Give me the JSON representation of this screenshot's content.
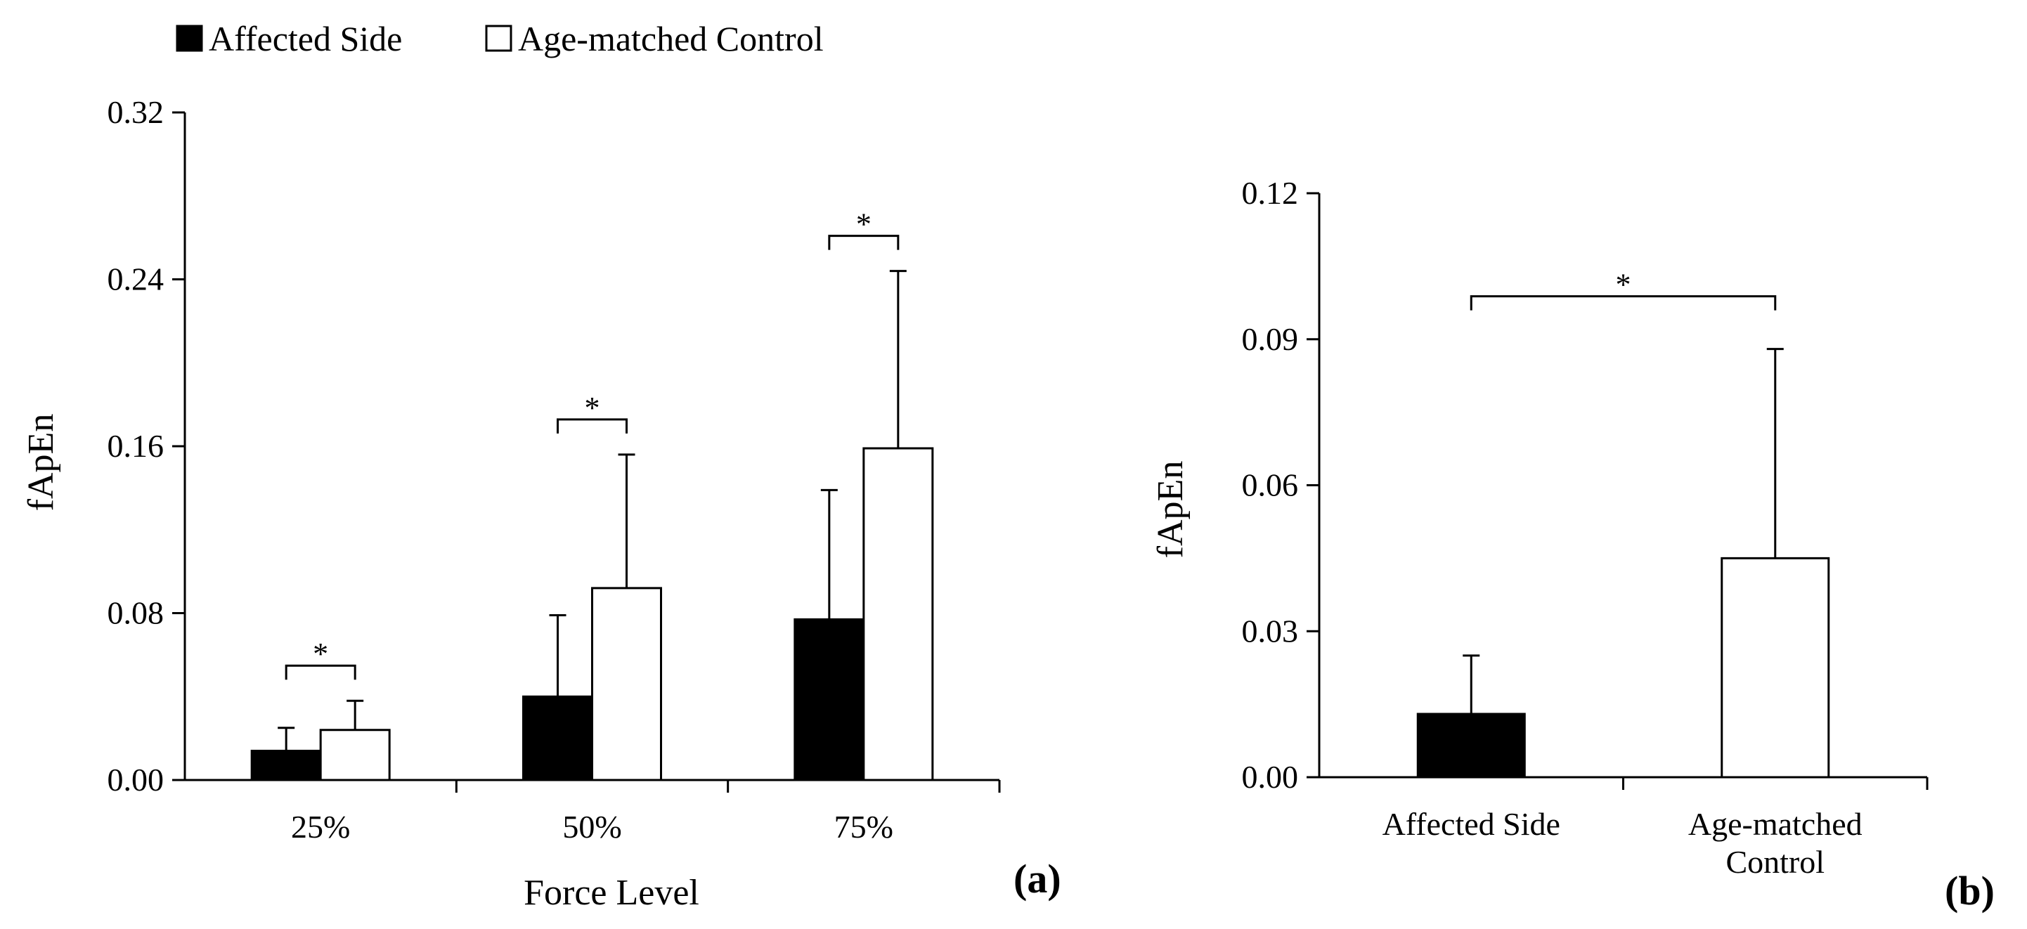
{
  "legend": {
    "items": [
      {
        "label": "Affected Side",
        "color": "#000000"
      },
      {
        "label": "Age-matched Control",
        "color": "#ffffff"
      }
    ]
  },
  "chart_data": [
    {
      "type": "bar",
      "panel_label": "(a)",
      "title": "",
      "xlabel": "Force Level",
      "ylabel": "fApEn",
      "categories": [
        "25%",
        "50%",
        "75%"
      ],
      "ylim": [
        0,
        0.32
      ],
      "yticks": [
        "0.00",
        "0.08",
        "0.16",
        "0.24",
        "0.32"
      ],
      "series": [
        {
          "name": "Affected Side",
          "values": [
            0.014,
            0.04,
            0.077
          ],
          "error": [
            0.011,
            0.039,
            0.062
          ],
          "color": "#000000"
        },
        {
          "name": "Age-matched Control",
          "values": [
            0.024,
            0.092,
            0.159
          ],
          "error": [
            0.014,
            0.064,
            0.085
          ],
          "color": "#ffffff"
        }
      ],
      "significance": [
        "*",
        "*",
        "*"
      ],
      "grid": false
    },
    {
      "type": "bar",
      "panel_label": "(b)",
      "title": "",
      "xlabel": "",
      "ylabel": "fApEn",
      "categories": [
        [
          "Affected Side"
        ],
        [
          "Age-matched",
          "Control"
        ]
      ],
      "ylim": [
        0,
        0.12
      ],
      "yticks": [
        "0.00",
        "0.03",
        "0.06",
        "0.09",
        "0.12"
      ],
      "values": [
        0.013,
        0.045
      ],
      "error": [
        0.012,
        0.043
      ],
      "colors": [
        "#000000",
        "#ffffff"
      ],
      "significance": "*",
      "grid": false
    }
  ]
}
